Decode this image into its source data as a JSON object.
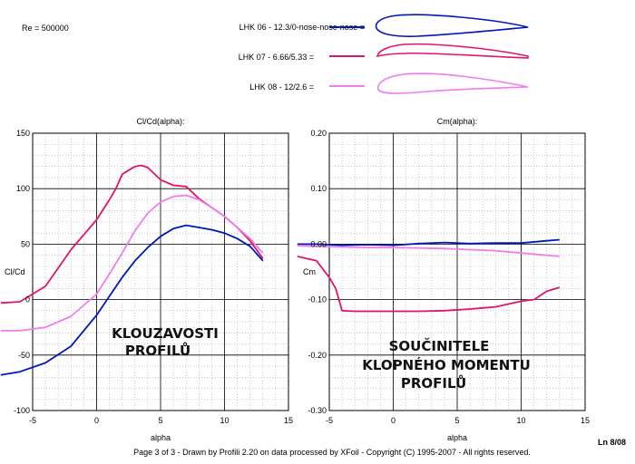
{
  "header": {
    "re_label": "Re = 500000",
    "legend": [
      {
        "name": "LHK  06 - 12.3/0-nose-nose-nose =",
        "color": "#0018b8"
      },
      {
        "name": "LHK 07 - 6.66/5.33 =",
        "color": "#e0146e"
      },
      {
        "name": "LHK 08 - 12/2.6 =",
        "color": "#f07cf0"
      }
    ]
  },
  "footer": {
    "text": "Page 3 of 3   -   Drawn by Profili 2.20 on data processed by  XFoil - Copyright (C) 1995-2007 - All rights reserved.",
    "code": "Ln 8/08"
  },
  "chart_data": [
    {
      "type": "line",
      "title": "Cl/Cd(alpha):",
      "xlabel": "alpha",
      "ylabel": "Cl/Cd",
      "xlim": [
        -5,
        15
      ],
      "ylim": [
        -100,
        150
      ],
      "xticks": [
        -5,
        0,
        5,
        10,
        15
      ],
      "yticks": [
        -100,
        -50,
        0,
        50,
        100,
        150
      ],
      "xtick_labels": [
        "-5",
        "0",
        "5",
        "10",
        "15"
      ],
      "ytick_labels": [
        "-100",
        "-50",
        "0",
        "50",
        "100",
        "150"
      ],
      "grid": true,
      "annotation": [
        "KLOUZAVOSTI",
        "PROFILŮ"
      ],
      "series": [
        {
          "name": "LHK  06 - 12.3/0-nose-nose-nose",
          "color": "#0018b8",
          "x": [
            -7.5,
            -6,
            -4,
            -2,
            0,
            1,
            2,
            3,
            4,
            5,
            6,
            7,
            8,
            9,
            10,
            11,
            12,
            13
          ],
          "y": [
            -68,
            -65,
            -57,
            -42,
            -14,
            3,
            20,
            35,
            47,
            57,
            64,
            67,
            65,
            63,
            60,
            55,
            48,
            35
          ]
        },
        {
          "name": "LHK 07 - 6.66/5.33",
          "color": "#e0146e",
          "x": [
            -7.5,
            -6,
            -4,
            -2,
            0,
            1,
            1.5,
            2,
            3,
            3.5,
            4,
            5,
            6,
            7,
            8,
            9,
            10,
            11,
            12,
            13
          ],
          "y": [
            -3,
            -2,
            12,
            45,
            72,
            90,
            100,
            113,
            120,
            121,
            119,
            108,
            103,
            102,
            91,
            83,
            75,
            65,
            53,
            37
          ]
        },
        {
          "name": "LHK 08 - 12/2.6",
          "color": "#f07cf0",
          "x": [
            -7.5,
            -6,
            -4,
            -2,
            0,
            1,
            2,
            3,
            4,
            5,
            6,
            7,
            8,
            9,
            10,
            11,
            12,
            13
          ],
          "y": [
            -28,
            -28,
            -25,
            -15,
            5,
            23,
            42,
            62,
            78,
            88,
            93,
            94,
            90,
            83,
            75,
            65,
            55,
            42
          ]
        }
      ]
    },
    {
      "type": "line",
      "title": "Cm(alpha):",
      "xlabel": "alpha",
      "ylabel": "Cm",
      "xlim": [
        -5,
        15
      ],
      "ylim": [
        -0.3,
        0.2
      ],
      "xticks": [
        -5,
        0,
        5,
        10,
        15
      ],
      "yticks": [
        -0.3,
        -0.2,
        -0.1,
        0.0,
        0.1,
        0.2
      ],
      "xtick_labels": [
        "-5",
        "0",
        "5",
        "10",
        "15"
      ],
      "ytick_labels": [
        "-0.30",
        "-0.20",
        "-0.10",
        "0.00",
        "0.10",
        "0.20"
      ],
      "grid": true,
      "annotation": [
        "SOUČINITELE",
        "KLOPNÉHO MOMENTU",
        "PROFILŮ"
      ],
      "series": [
        {
          "name": "LHK  06 - 12.3/0-nose-nose-nose",
          "color": "#0018b8",
          "x": [
            -7.5,
            -6,
            -4,
            -2,
            0,
            2,
            4,
            5,
            6,
            8,
            10,
            12,
            13
          ],
          "y": [
            0.0,
            0.0,
            -0.002,
            -0.001,
            -0.002,
            0.001,
            0.003,
            0.002,
            0.001,
            0.002,
            0.002,
            0.006,
            0.008
          ]
        },
        {
          "name": "LHK 07 - 6.66/5.33",
          "color": "#e0146e",
          "x": [
            -7.5,
            -6,
            -5,
            -4.5,
            -4,
            -3,
            -2,
            0,
            2,
            4,
            6,
            7,
            8,
            9,
            10,
            11,
            12,
            13
          ],
          "y": [
            -0.022,
            -0.03,
            -0.06,
            -0.08,
            -0.12,
            -0.121,
            -0.121,
            -0.121,
            -0.121,
            -0.12,
            -0.117,
            -0.115,
            -0.113,
            -0.108,
            -0.103,
            -0.1,
            -0.085,
            -0.078
          ]
        },
        {
          "name": "LHK 08 - 12/2.6",
          "color": "#f07cf0",
          "x": [
            -7.5,
            -6,
            -4,
            -2,
            0,
            2,
            4,
            6,
            8,
            10,
            12,
            13
          ],
          "y": [
            -0.003,
            -0.004,
            -0.005,
            -0.006,
            -0.006,
            -0.007,
            -0.008,
            -0.01,
            -0.012,
            -0.016,
            -0.02,
            -0.022
          ]
        }
      ]
    }
  ]
}
